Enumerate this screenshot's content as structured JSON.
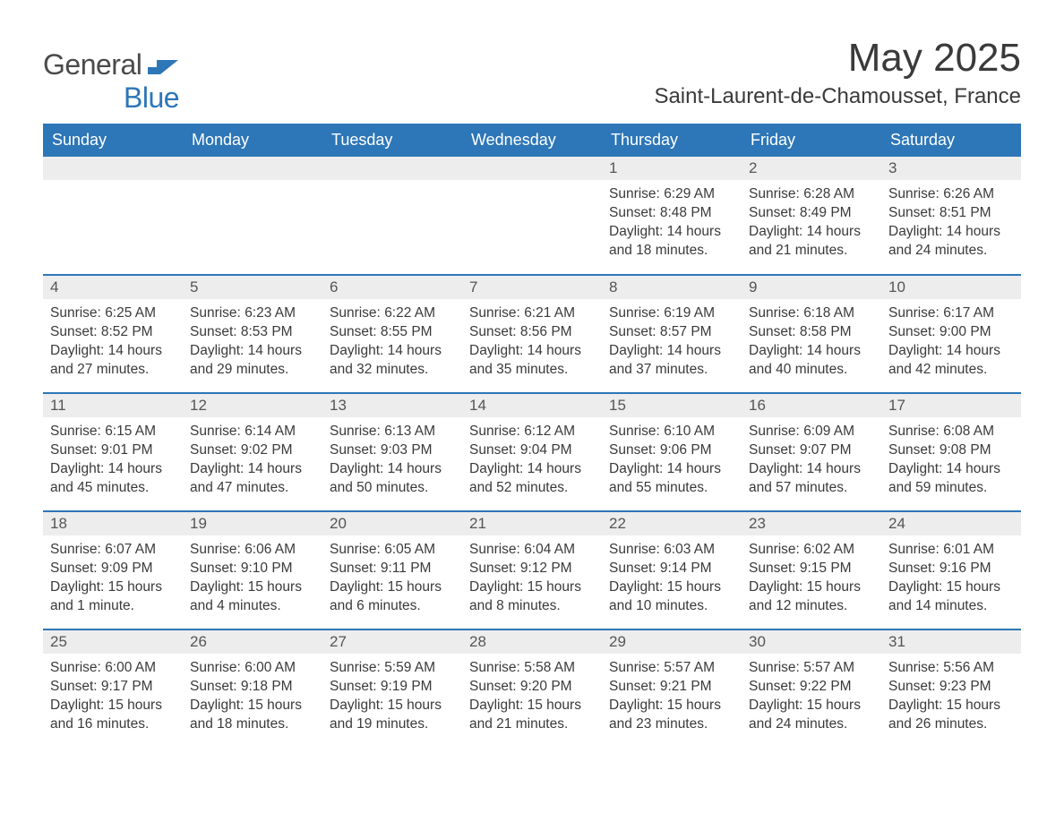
{
  "brand": {
    "part1": "General",
    "part2": "Blue",
    "shape_color": "#2d76b7"
  },
  "title": "May 2025",
  "location": "Saint-Laurent-de-Chamousset, France",
  "colors": {
    "header_bg": "#2d76b7",
    "header_text": "#ffffff",
    "daynum_bg": "#ededed",
    "daynum_text": "#555555",
    "body_text": "#3a3a3a",
    "row_border": "#2d76b7",
    "page_bg": "#ffffff"
  },
  "typography": {
    "title_fontsize": 44,
    "location_fontsize": 24,
    "header_fontsize": 18,
    "daynum_fontsize": 17,
    "cell_fontsize": 15.5,
    "font_family": "Arial"
  },
  "layout": {
    "columns": 7,
    "rows": 5,
    "first_day_column_index": 4
  },
  "weekdays": [
    "Sunday",
    "Monday",
    "Tuesday",
    "Wednesday",
    "Thursday",
    "Friday",
    "Saturday"
  ],
  "days": [
    {
      "n": 1,
      "sunrise": "6:29 AM",
      "sunset": "8:48 PM",
      "daylight": "14 hours and 18 minutes."
    },
    {
      "n": 2,
      "sunrise": "6:28 AM",
      "sunset": "8:49 PM",
      "daylight": "14 hours and 21 minutes."
    },
    {
      "n": 3,
      "sunrise": "6:26 AM",
      "sunset": "8:51 PM",
      "daylight": "14 hours and 24 minutes."
    },
    {
      "n": 4,
      "sunrise": "6:25 AM",
      "sunset": "8:52 PM",
      "daylight": "14 hours and 27 minutes."
    },
    {
      "n": 5,
      "sunrise": "6:23 AM",
      "sunset": "8:53 PM",
      "daylight": "14 hours and 29 minutes."
    },
    {
      "n": 6,
      "sunrise": "6:22 AM",
      "sunset": "8:55 PM",
      "daylight": "14 hours and 32 minutes."
    },
    {
      "n": 7,
      "sunrise": "6:21 AM",
      "sunset": "8:56 PM",
      "daylight": "14 hours and 35 minutes."
    },
    {
      "n": 8,
      "sunrise": "6:19 AM",
      "sunset": "8:57 PM",
      "daylight": "14 hours and 37 minutes."
    },
    {
      "n": 9,
      "sunrise": "6:18 AM",
      "sunset": "8:58 PM",
      "daylight": "14 hours and 40 minutes."
    },
    {
      "n": 10,
      "sunrise": "6:17 AM",
      "sunset": "9:00 PM",
      "daylight": "14 hours and 42 minutes."
    },
    {
      "n": 11,
      "sunrise": "6:15 AM",
      "sunset": "9:01 PM",
      "daylight": "14 hours and 45 minutes."
    },
    {
      "n": 12,
      "sunrise": "6:14 AM",
      "sunset": "9:02 PM",
      "daylight": "14 hours and 47 minutes."
    },
    {
      "n": 13,
      "sunrise": "6:13 AM",
      "sunset": "9:03 PM",
      "daylight": "14 hours and 50 minutes."
    },
    {
      "n": 14,
      "sunrise": "6:12 AM",
      "sunset": "9:04 PM",
      "daylight": "14 hours and 52 minutes."
    },
    {
      "n": 15,
      "sunrise": "6:10 AM",
      "sunset": "9:06 PM",
      "daylight": "14 hours and 55 minutes."
    },
    {
      "n": 16,
      "sunrise": "6:09 AM",
      "sunset": "9:07 PM",
      "daylight": "14 hours and 57 minutes."
    },
    {
      "n": 17,
      "sunrise": "6:08 AM",
      "sunset": "9:08 PM",
      "daylight": "14 hours and 59 minutes."
    },
    {
      "n": 18,
      "sunrise": "6:07 AM",
      "sunset": "9:09 PM",
      "daylight": "15 hours and 1 minute."
    },
    {
      "n": 19,
      "sunrise": "6:06 AM",
      "sunset": "9:10 PM",
      "daylight": "15 hours and 4 minutes."
    },
    {
      "n": 20,
      "sunrise": "6:05 AM",
      "sunset": "9:11 PM",
      "daylight": "15 hours and 6 minutes."
    },
    {
      "n": 21,
      "sunrise": "6:04 AM",
      "sunset": "9:12 PM",
      "daylight": "15 hours and 8 minutes."
    },
    {
      "n": 22,
      "sunrise": "6:03 AM",
      "sunset": "9:14 PM",
      "daylight": "15 hours and 10 minutes."
    },
    {
      "n": 23,
      "sunrise": "6:02 AM",
      "sunset": "9:15 PM",
      "daylight": "15 hours and 12 minutes."
    },
    {
      "n": 24,
      "sunrise": "6:01 AM",
      "sunset": "9:16 PM",
      "daylight": "15 hours and 14 minutes."
    },
    {
      "n": 25,
      "sunrise": "6:00 AM",
      "sunset": "9:17 PM",
      "daylight": "15 hours and 16 minutes."
    },
    {
      "n": 26,
      "sunrise": "6:00 AM",
      "sunset": "9:18 PM",
      "daylight": "15 hours and 18 minutes."
    },
    {
      "n": 27,
      "sunrise": "5:59 AM",
      "sunset": "9:19 PM",
      "daylight": "15 hours and 19 minutes."
    },
    {
      "n": 28,
      "sunrise": "5:58 AM",
      "sunset": "9:20 PM",
      "daylight": "15 hours and 21 minutes."
    },
    {
      "n": 29,
      "sunrise": "5:57 AM",
      "sunset": "9:21 PM",
      "daylight": "15 hours and 23 minutes."
    },
    {
      "n": 30,
      "sunrise": "5:57 AM",
      "sunset": "9:22 PM",
      "daylight": "15 hours and 24 minutes."
    },
    {
      "n": 31,
      "sunrise": "5:56 AM",
      "sunset": "9:23 PM",
      "daylight": "15 hours and 26 minutes."
    }
  ],
  "labels": {
    "sunrise": "Sunrise:",
    "sunset": "Sunset:",
    "daylight": "Daylight:"
  }
}
